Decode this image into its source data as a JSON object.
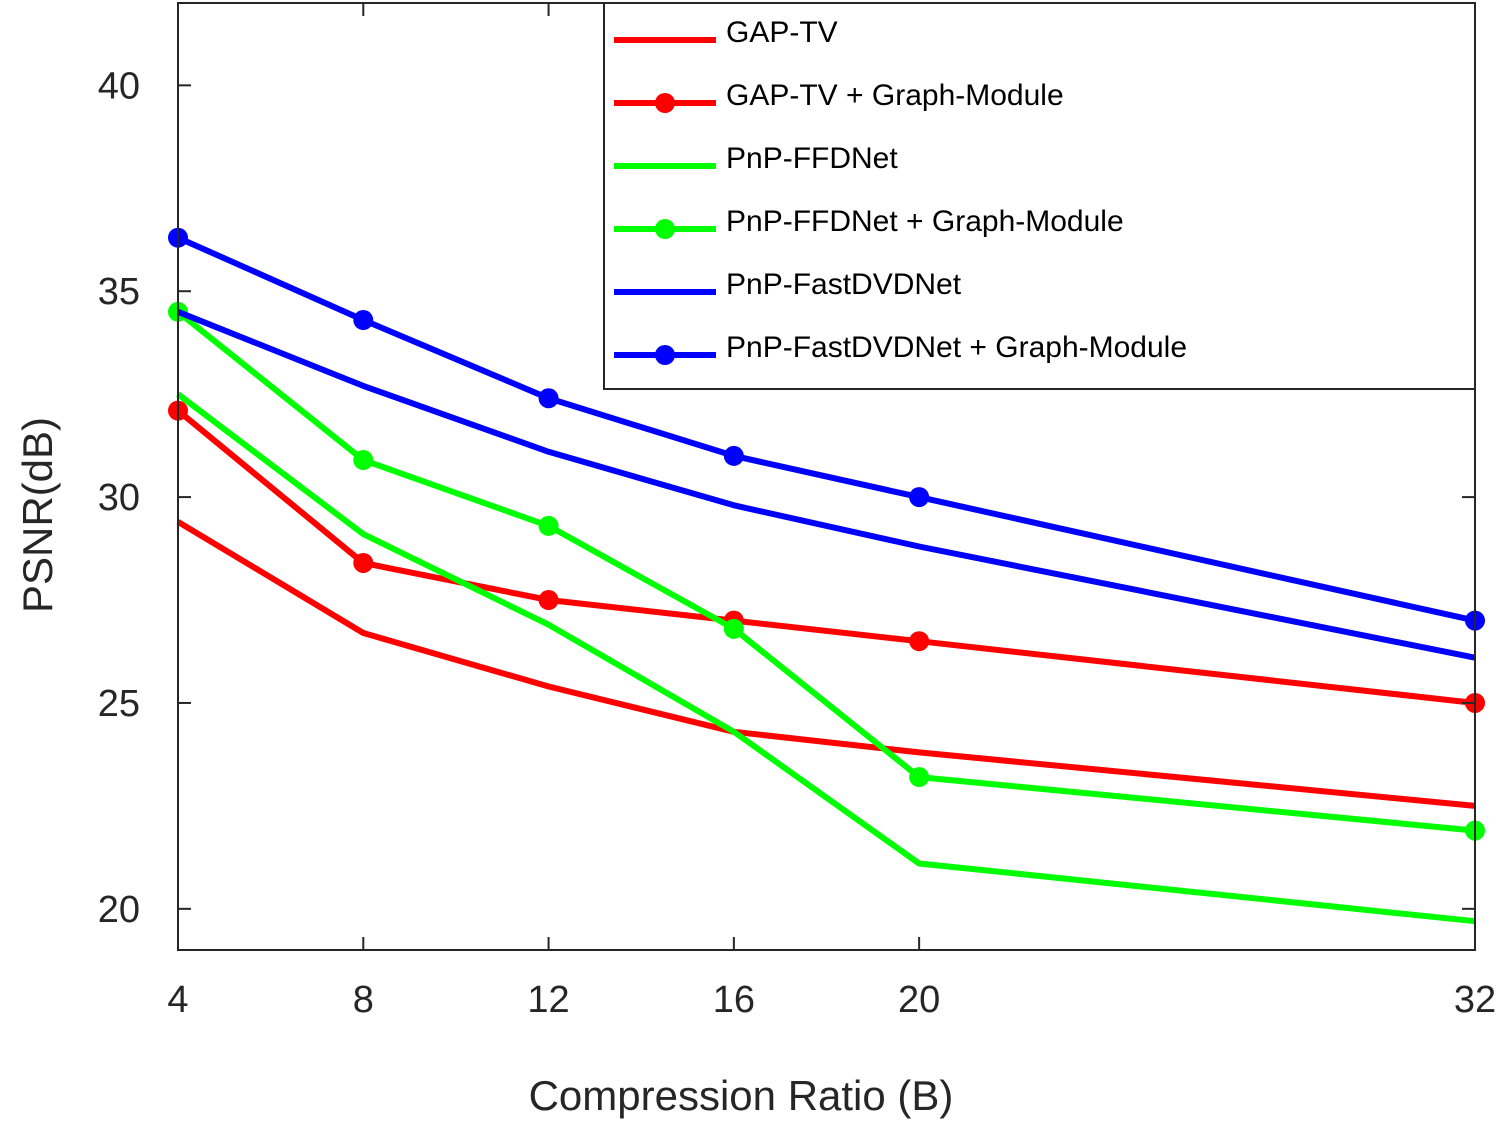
{
  "chart_data": {
    "type": "line",
    "title": "",
    "xlabel": "Compression Ratio (B)",
    "ylabel": "PSNR(dB)",
    "x_categories": [
      "4",
      "8",
      "12",
      "16",
      "20",
      "32"
    ],
    "y_ticks": [
      "20",
      "25",
      "30",
      "35",
      "40"
    ],
    "ylim": [
      19,
      42
    ],
    "grid": false,
    "legend_position": "top-right",
    "series": [
      {
        "name": "GAP-TV",
        "color": "#ff0000",
        "markers": false,
        "values": [
          29.4,
          26.7,
          25.4,
          24.3,
          23.8,
          22.5
        ]
      },
      {
        "name": "GAP-TV + Graph-Module",
        "color": "#ff0000",
        "markers": true,
        "values": [
          32.1,
          28.4,
          27.5,
          27.0,
          26.5,
          25.0
        ]
      },
      {
        "name": "PnP-FFDNet",
        "color": "#00ff00",
        "markers": false,
        "values": [
          32.5,
          29.1,
          26.9,
          24.3,
          21.1,
          19.7
        ]
      },
      {
        "name": "PnP-FFDNet + Graph-Module",
        "color": "#00ff00",
        "markers": true,
        "values": [
          34.5,
          30.9,
          29.3,
          26.8,
          23.2,
          21.9
        ]
      },
      {
        "name": "PnP-FastDVDNet",
        "color": "#0000ff",
        "markers": false,
        "values": [
          34.5,
          32.7,
          31.1,
          29.8,
          28.8,
          26.1
        ]
      },
      {
        "name": "PnP-FastDVDNet + Graph-Module",
        "color": "#0000ff",
        "markers": true,
        "values": [
          36.3,
          34.3,
          32.4,
          31.0,
          30.0,
          27.0
        ]
      }
    ]
  }
}
